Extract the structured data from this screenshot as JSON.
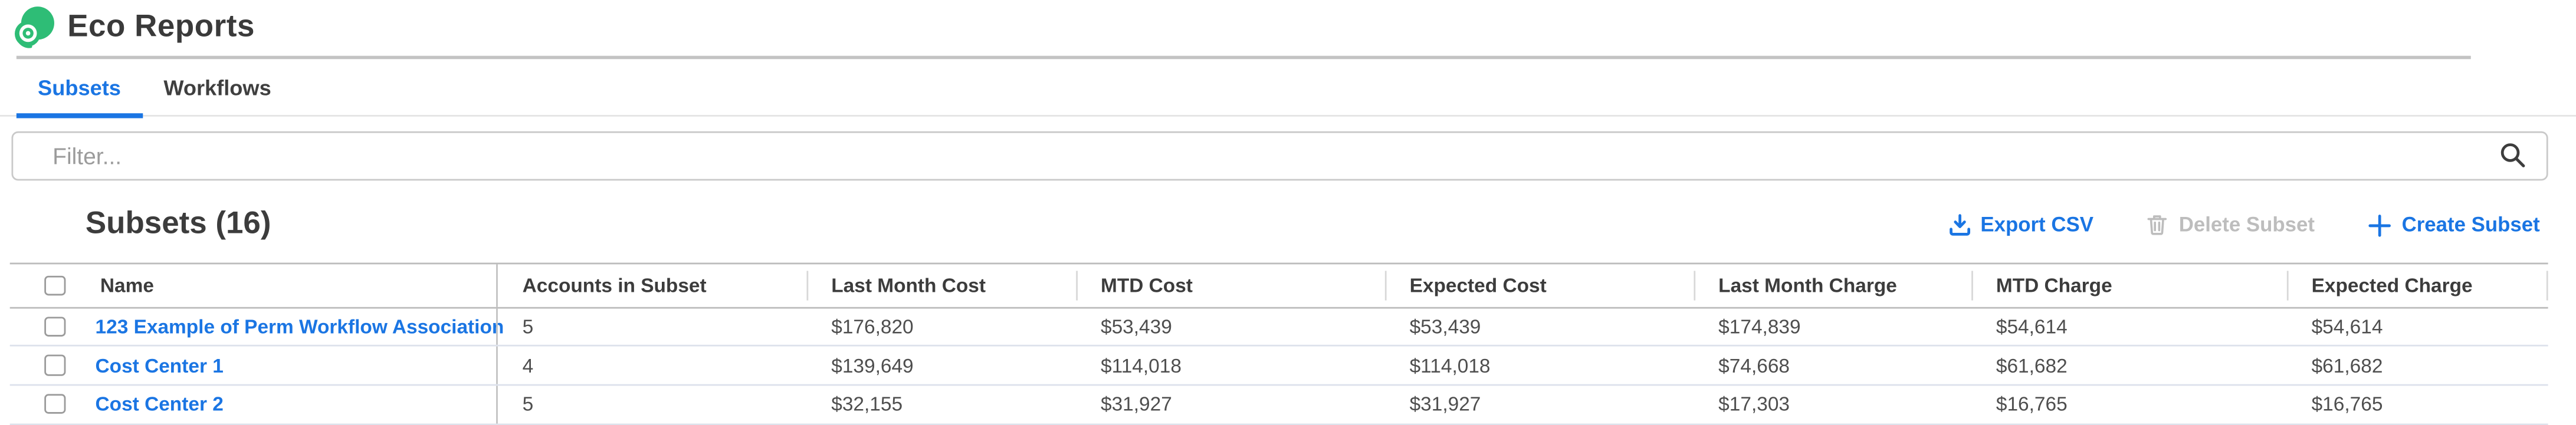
{
  "app": {
    "title": "Eco Reports"
  },
  "tabs": [
    {
      "label": "Subsets",
      "active": true
    },
    {
      "label": "Workflows",
      "active": false
    }
  ],
  "filter": {
    "placeholder": "Filter...",
    "value": "",
    "icon": "search-icon"
  },
  "section": {
    "title": "Subsets (16)",
    "actions": [
      {
        "label": "Export CSV",
        "icon": "download-icon",
        "enabled": true
      },
      {
        "label": "Delete Subset",
        "icon": "trash-icon",
        "enabled": false
      },
      {
        "label": "Create Subset",
        "icon": "plus-icon",
        "enabled": true
      }
    ]
  },
  "table": {
    "columns": [
      "Name",
      "Accounts in Subset",
      "Last Month Cost",
      "MTD Cost",
      "Expected Cost",
      "Last Month Charge",
      "MTD Charge",
      "Expected Charge"
    ],
    "rows": [
      {
        "name": "123 Example of Perm Workflow Association",
        "accounts": "5",
        "last_month_cost": "$176,820",
        "mtd_cost": "$53,439",
        "expected_cost": "$53,439",
        "last_month_charge": "$174,839",
        "mtd_charge": "$54,614",
        "expected_charge": "$54,614"
      },
      {
        "name": "Cost Center 1",
        "accounts": "4",
        "last_month_cost": "$139,649",
        "mtd_cost": "$114,018",
        "expected_cost": "$114,018",
        "last_month_charge": "$74,668",
        "mtd_charge": "$61,682",
        "expected_charge": "$61,682"
      },
      {
        "name": "Cost Center 2",
        "accounts": "5",
        "last_month_cost": "$32,155",
        "mtd_cost": "$31,927",
        "expected_cost": "$31,927",
        "last_month_charge": "$17,303",
        "mtd_charge": "$16,765",
        "expected_charge": "$16,765"
      }
    ]
  },
  "colors": {
    "accent_blue": "#1a75e3",
    "brand_green": "#2ebd76",
    "disabled_gray": "#bdbdbd",
    "dark_text": "#3c3c3c",
    "row_divider": "#dde2ec",
    "header_border": "#bcbcbc"
  }
}
